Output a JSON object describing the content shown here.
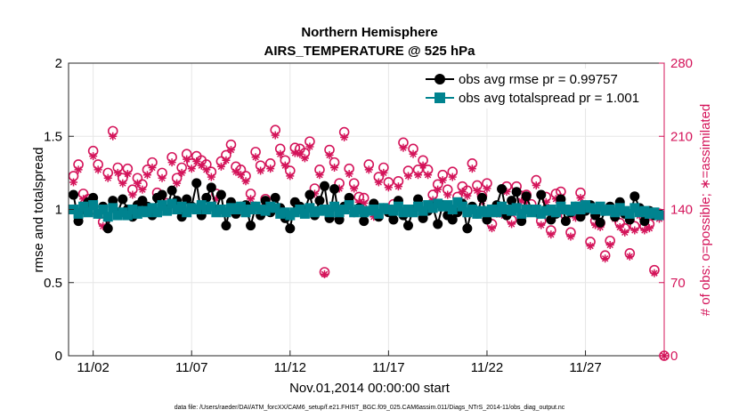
{
  "chart_data": {
    "type": "line",
    "title": "Northern Hemisphere",
    "subtitle": "AIRS_TEMPERATURE @ 525 hPa",
    "xlabel": "Nov.01,2014 00:00:00 start",
    "ylabel": "rmse and totalspread",
    "y2label": "# of obs: o=possible; ∗=assimilated",
    "footnote": "data file: /Users/raeder/DAI/ATM_forcXX/CAM6_setup/f.e21.FHIST_BGC.f09_025.CAM6assim.011/Diags_NTrS_2014-11/obs_diag_output.nc",
    "x_tick_labels": [
      "11/02",
      "11/07",
      "11/12",
      "11/17",
      "11/22",
      "11/27"
    ],
    "x_tick_days": [
      2,
      7,
      12,
      17,
      22,
      27
    ],
    "xlim_days": [
      0.75,
      31.0
    ],
    "ylim": [
      0,
      2
    ],
    "y_ticks": [
      0,
      0.5,
      1,
      1.5,
      2
    ],
    "y2lim": [
      0,
      280
    ],
    "y2_ticks": [
      0,
      70,
      140,
      210,
      280
    ],
    "grid": true,
    "legend_position": "top-right",
    "colors": {
      "rmse": "#000000",
      "spread": "#00838f",
      "obs": "#d4145a"
    },
    "series": [
      {
        "name": "obs avg rmse pr = 0.99757",
        "axis": "left",
        "marker": "circle",
        "x": [
          1.0,
          1.25,
          1.5,
          1.75,
          2.0,
          2.25,
          2.5,
          2.75,
          3.0,
          3.25,
          3.5,
          3.75,
          4.0,
          4.25,
          4.5,
          4.75,
          5.0,
          5.25,
          5.5,
          5.75,
          6.0,
          6.25,
          6.5,
          6.75,
          7.0,
          7.25,
          7.5,
          7.75,
          8.0,
          8.25,
          8.5,
          8.75,
          9.0,
          9.25,
          9.5,
          9.75,
          10.0,
          10.25,
          10.5,
          10.75,
          11.0,
          11.25,
          11.5,
          11.75,
          12.0,
          12.25,
          12.5,
          12.75,
          13.0,
          13.25,
          13.5,
          13.75,
          14.0,
          14.25,
          14.5,
          14.75,
          15.0,
          15.25,
          15.5,
          15.75,
          16.0,
          16.25,
          16.5,
          16.75,
          17.0,
          17.25,
          17.5,
          17.75,
          18.0,
          18.25,
          18.5,
          18.75,
          19.0,
          19.25,
          19.5,
          19.75,
          20.0,
          20.25,
          20.5,
          20.75,
          21.0,
          21.25,
          21.5,
          21.75,
          22.0,
          22.25,
          22.5,
          22.75,
          23.0,
          23.25,
          23.5,
          23.75,
          24.0,
          24.25,
          24.5,
          24.75,
          25.0,
          25.25,
          25.5,
          25.75,
          26.0,
          26.25,
          26.5,
          26.75,
          27.0,
          27.25,
          27.5,
          27.75,
          28.0,
          28.25,
          28.5,
          28.75,
          29.0,
          29.25,
          29.5,
          29.75,
          30.0,
          30.25,
          30.5,
          30.75
        ],
        "values": [
          1.1,
          0.92,
          1.0,
          1.05,
          1.08,
          0.97,
          1.02,
          0.87,
          1.06,
          0.98,
          1.07,
          1.0,
          0.95,
          1.03,
          1.06,
          1.02,
          0.96,
          1.08,
          1.1,
          1.0,
          1.13,
          1.06,
          0.95,
          1.07,
          1.02,
          1.18,
          0.96,
          1.08,
          1.15,
          1.0,
          1.1,
          0.89,
          1.05,
          0.97,
          1.02,
          1.03,
          0.89,
          1.02,
          0.96,
          1.06,
          0.98,
          1.08,
          1.01,
          0.94,
          0.87,
          1.05,
          1.02,
          0.99,
          1.1,
          0.96,
          1.06,
          1.16,
          0.94,
          1.14,
          0.93,
          1.02,
          1.08,
          0.98,
          1.01,
          0.92,
          0.99,
          1.04,
          0.95,
          1.01,
          0.98,
          0.93,
          1.06,
          0.96,
          0.89,
          1.0,
          1.07,
          0.94,
          0.99,
          1.02,
          0.9,
          1.03,
          0.96,
          0.93,
          0.98,
          1.04,
          0.87,
          1.02,
          0.97,
          1.08,
          0.93,
          0.99,
          1.03,
          1.14,
          0.96,
          1.06,
          1.12,
          0.92,
          1.09,
          1.0,
          0.98,
          1.1,
          1.0,
          0.93,
          0.97,
          1.07,
          0.92,
          0.98,
          1.02,
          0.95,
          0.99,
          1.03,
          0.96,
          0.91,
          0.99,
          1.02,
          0.95,
          1.05,
          0.97,
          0.93,
          1.09,
          1.01,
          0.92,
          0.99,
          0.96,
          0.97
        ]
      },
      {
        "name": "obs avg totalspread pr = 1.001",
        "axis": "left",
        "marker": "square",
        "x": [
          1.0,
          1.25,
          1.5,
          1.75,
          2.0,
          2.25,
          2.5,
          2.75,
          3.0,
          3.25,
          3.5,
          3.75,
          4.0,
          4.25,
          4.5,
          4.75,
          5.0,
          5.25,
          5.5,
          5.75,
          6.0,
          6.25,
          6.5,
          6.75,
          7.0,
          7.25,
          7.5,
          7.75,
          8.0,
          8.25,
          8.5,
          8.75,
          9.0,
          9.25,
          9.5,
          9.75,
          10.0,
          10.25,
          10.5,
          10.75,
          11.0,
          11.25,
          11.5,
          11.75,
          12.0,
          12.25,
          12.5,
          12.75,
          13.0,
          13.25,
          13.5,
          13.75,
          14.0,
          14.25,
          14.5,
          14.75,
          15.0,
          15.25,
          15.5,
          15.75,
          16.0,
          16.25,
          16.5,
          16.75,
          17.0,
          17.25,
          17.5,
          17.75,
          18.0,
          18.25,
          18.5,
          18.75,
          19.0,
          19.25,
          19.5,
          19.75,
          20.0,
          20.25,
          20.5,
          20.75,
          21.0,
          21.25,
          21.5,
          21.75,
          22.0,
          22.25,
          22.5,
          22.75,
          23.0,
          23.25,
          23.5,
          23.75,
          24.0,
          24.25,
          24.5,
          24.75,
          25.0,
          25.25,
          25.5,
          25.75,
          26.0,
          26.25,
          26.5,
          26.75,
          27.0,
          27.25,
          27.5,
          27.75,
          28.0,
          28.25,
          28.5,
          28.75,
          29.0,
          29.25,
          29.5,
          29.75,
          30.0,
          30.25,
          30.5,
          30.75
        ],
        "values": [
          1.0,
          0.97,
          1.02,
          0.98,
          1.03,
          0.97,
          1.0,
          0.95,
          1.01,
          0.96,
          0.98,
          0.96,
          1.0,
          0.97,
          0.99,
          0.98,
          1.01,
          0.98,
          1.03,
          0.99,
          1.04,
          1.0,
          1.02,
          0.98,
          1.01,
          1.0,
          1.03,
          1.0,
          1.02,
          0.98,
          1.0,
          0.98,
          1.01,
          1.0,
          1.02,
          0.98,
          1.0,
          1.02,
          1.0,
          0.99,
          1.02,
          1.01,
          0.97,
          0.98,
          0.96,
          0.98,
          1.0,
          0.97,
          1.01,
          0.98,
          0.99,
          1.0,
          0.98,
          1.02,
          0.98,
          1.0,
          1.03,
          0.98,
          1.0,
          0.98,
          0.99,
          1.0,
          0.97,
          1.01,
          1.0,
          0.99,
          1.02,
          0.98,
          1.0,
          0.98,
          1.02,
          0.99,
          1.03,
          1.01,
          1.04,
          1.02,
          1.03,
          1.0,
          1.05,
          1.02,
          0.98,
          1.0,
          0.97,
          0.99,
          0.98,
          1.0,
          0.98,
          1.02,
          1.0,
          0.99,
          1.01,
          0.97,
          1.0,
          0.98,
          1.0,
          0.97,
          0.99,
          1.0,
          0.98,
          1.02,
          1.0,
          0.99,
          1.02,
          1.0,
          1.03,
          1.01,
          1.0,
          1.02,
          0.99,
          1.0,
          0.98,
          1.01,
          0.99,
          0.97,
          1.01,
          0.98,
          0.99,
          0.97,
          0.98,
          0.96
        ]
      },
      {
        "name": "obs possible",
        "axis": "right",
        "marker": "circle-open",
        "x": [
          1.0,
          1.25,
          1.5,
          1.75,
          2.0,
          2.25,
          2.5,
          2.75,
          3.0,
          3.25,
          3.5,
          3.75,
          4.0,
          4.25,
          4.5,
          4.75,
          5.0,
          5.25,
          5.5,
          5.75,
          6.0,
          6.25,
          6.5,
          6.75,
          7.0,
          7.25,
          7.5,
          7.75,
          8.0,
          8.25,
          8.5,
          8.75,
          9.0,
          9.25,
          9.5,
          9.75,
          10.0,
          10.25,
          10.5,
          10.75,
          11.0,
          11.25,
          11.5,
          11.75,
          12.0,
          12.25,
          12.5,
          12.75,
          13.0,
          13.25,
          13.5,
          13.75,
          14.0,
          14.25,
          14.5,
          14.75,
          15.0,
          15.25,
          15.5,
          15.75,
          16.0,
          16.25,
          16.5,
          16.75,
          17.0,
          17.25,
          17.5,
          17.75,
          18.0,
          18.25,
          18.5,
          18.75,
          19.0,
          19.25,
          19.5,
          19.75,
          20.0,
          20.25,
          20.5,
          20.75,
          21.0,
          21.25,
          21.5,
          21.75,
          22.0,
          22.25,
          22.5,
          22.75,
          23.0,
          23.25,
          23.5,
          23.75,
          24.0,
          24.25,
          24.5,
          24.75,
          25.0,
          25.25,
          25.5,
          25.75,
          26.0,
          26.25,
          26.5,
          26.75,
          27.0,
          27.25,
          27.5,
          27.75,
          28.0,
          28.25,
          28.5,
          28.75,
          29.0,
          29.25,
          29.5,
          29.75,
          30.0,
          30.25,
          30.5,
          30.75,
          31.0
        ],
        "values": [
          172,
          183,
          155,
          150,
          196,
          183,
          128,
          175,
          215,
          180,
          170,
          179,
          159,
          170,
          164,
          178,
          185,
          156,
          175,
          146,
          190,
          170,
          180,
          193,
          184,
          191,
          187,
          183,
          176,
          155,
          186,
          192,
          202,
          181,
          178,
          172,
          155,
          195,
          182,
          150,
          184,
          216,
          198,
          187,
          177,
          199,
          198,
          194,
          205,
          160,
          178,
          80,
          197,
          185,
          165,
          214,
          179,
          165,
          152,
          151,
          183,
          138,
          171,
          180,
          166,
          145,
          167,
          204,
          177,
          198,
          178,
          187,
          178,
          154,
          164,
          173,
          159,
          176,
          152,
          162,
          158,
          184,
          163,
          153,
          165,
          126,
          140,
          140,
          162,
          130,
          162,
          153,
          154,
          145,
          168,
          129,
          152,
          120,
          155,
          157,
          134,
          118,
          137,
          156,
          144,
          109,
          129,
          127,
          96,
          110,
          136,
          127,
          122,
          98,
          124,
          139,
          124,
          126,
          82,
          136,
          0
        ]
      },
      {
        "name": "obs assimilated",
        "axis": "right",
        "marker": "asterisk",
        "x": [
          1.0,
          1.25,
          1.5,
          1.75,
          2.0,
          2.25,
          2.5,
          2.75,
          3.0,
          3.25,
          3.5,
          3.75,
          4.0,
          4.25,
          4.5,
          4.75,
          5.0,
          5.25,
          5.5,
          5.75,
          6.0,
          6.25,
          6.5,
          6.75,
          7.0,
          7.25,
          7.5,
          7.75,
          8.0,
          8.25,
          8.5,
          8.75,
          9.0,
          9.25,
          9.5,
          9.75,
          10.0,
          10.25,
          10.5,
          10.75,
          11.0,
          11.25,
          11.5,
          11.75,
          12.0,
          12.25,
          12.5,
          12.75,
          13.0,
          13.25,
          13.5,
          13.75,
          14.0,
          14.25,
          14.5,
          14.75,
          15.0,
          15.25,
          15.5,
          15.75,
          16.0,
          16.25,
          16.5,
          16.75,
          17.0,
          17.25,
          17.5,
          17.75,
          18.0,
          18.25,
          18.5,
          18.75,
          19.0,
          19.25,
          19.5,
          19.75,
          20.0,
          20.25,
          20.5,
          20.75,
          21.0,
          21.25,
          21.5,
          21.75,
          22.0,
          22.25,
          22.5,
          22.75,
          23.0,
          23.25,
          23.5,
          23.75,
          24.0,
          24.25,
          24.5,
          24.75,
          25.0,
          25.25,
          25.5,
          25.75,
          26.0,
          26.25,
          26.5,
          26.75,
          27.0,
          27.25,
          27.5,
          27.75,
          28.0,
          28.25,
          28.5,
          28.75,
          29.0,
          29.25,
          29.5,
          29.75,
          30.0,
          30.25,
          30.5,
          30.75,
          31.0
        ],
        "values": [
          166,
          178,
          150,
          145,
          191,
          178,
          124,
          170,
          210,
          175,
          165,
          174,
          154,
          165,
          159,
          173,
          180,
          151,
          170,
          141,
          185,
          165,
          175,
          188,
          179,
          186,
          182,
          178,
          171,
          150,
          181,
          187,
          197,
          176,
          173,
          167,
          150,
          190,
          177,
          145,
          179,
          211,
          193,
          182,
          172,
          194,
          193,
          189,
          200,
          155,
          173,
          78,
          192,
          180,
          160,
          209,
          174,
          160,
          147,
          146,
          178,
          133,
          166,
          175,
          161,
          140,
          162,
          199,
          172,
          193,
          173,
          182,
          173,
          149,
          159,
          168,
          154,
          171,
          147,
          157,
          153,
          179,
          158,
          148,
          160,
          122,
          136,
          135,
          157,
          126,
          157,
          148,
          149,
          140,
          163,
          125,
          147,
          116,
          150,
          152,
          129,
          114,
          132,
          151,
          139,
          105,
          125,
          123,
          93,
          106,
          131,
          123,
          118,
          95,
          120,
          134,
          120,
          122,
          79,
          131,
          0
        ]
      }
    ]
  }
}
